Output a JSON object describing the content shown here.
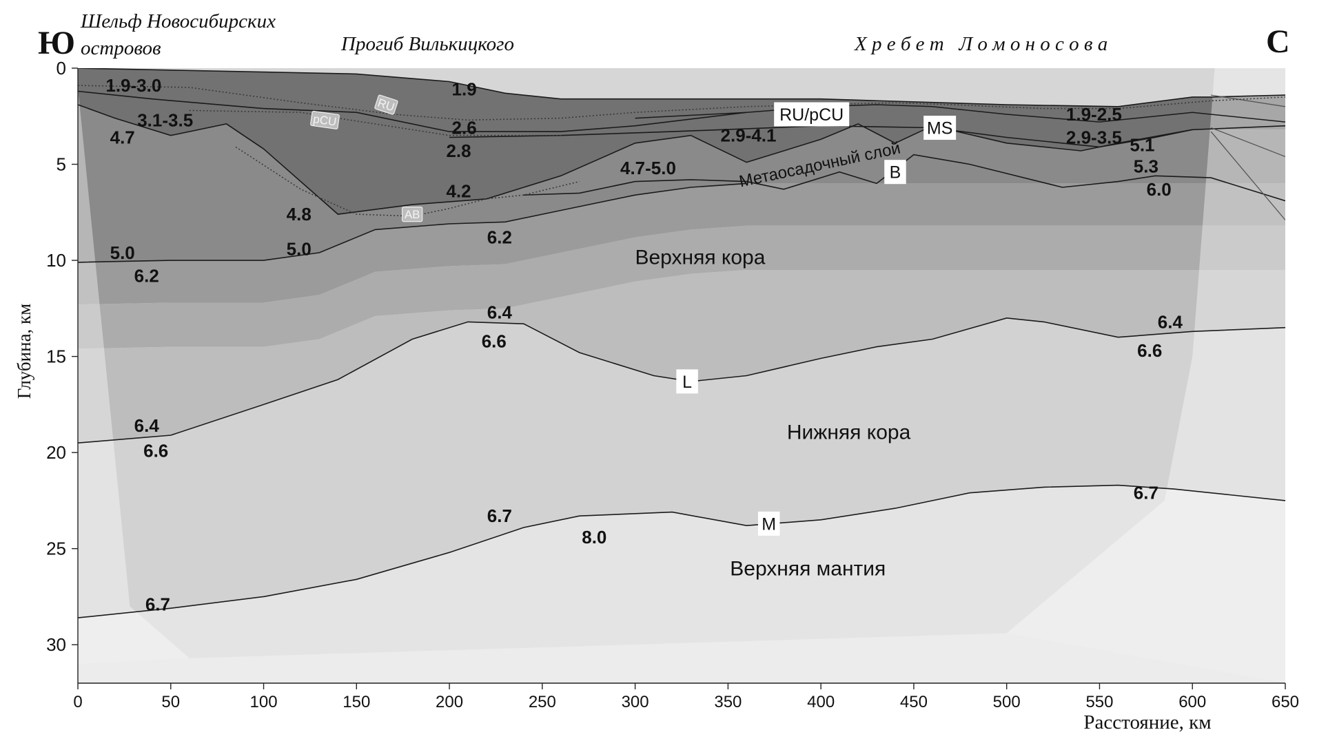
{
  "header": {
    "south_letter": "Ю",
    "north_letter": "С",
    "region_shelf_line1": "Шельф Новосибирских",
    "region_shelf_line2": "островов",
    "region_trough": "Прогиб Вилькицкого",
    "region_ridge": "Х р е б е т   Л о м о н о с о в а"
  },
  "axes": {
    "ylabel": "Глубина, км",
    "xlabel": "Расстояние, км",
    "x_ticks": [
      0,
      50,
      100,
      150,
      200,
      250,
      300,
      350,
      400,
      450,
      500,
      550,
      600,
      650
    ],
    "y_ticks": [
      0,
      5,
      10,
      15,
      20,
      25,
      30
    ],
    "x_range": [
      0,
      650
    ],
    "y_range": [
      0,
      32
    ]
  },
  "layers": [
    {
      "label": "Верхняя кора",
      "x": 335,
      "y": 10.2
    },
    {
      "label": "Нижняя кора",
      "x": 415,
      "y": 19.3
    },
    {
      "label": "Верхняя мантия",
      "x": 393,
      "y": 26.4
    },
    {
      "label": "Метаосадочный слой",
      "x": 400,
      "y": 5.3,
      "rotate": -12
    }
  ],
  "boxed_labels": [
    {
      "text": "RU/pCU",
      "x": 395,
      "y": 2.4,
      "big": true
    },
    {
      "text": "MS",
      "x": 464,
      "y": 3.1,
      "big": true
    },
    {
      "text": "B",
      "x": 440,
      "y": 5.4,
      "big": true
    },
    {
      "text": "L",
      "x": 328,
      "y": 16.3,
      "big": true
    },
    {
      "text": "M",
      "x": 372,
      "y": 23.7,
      "big": true
    },
    {
      "text": "RU",
      "x": 166,
      "y": 1.9,
      "big": false,
      "rotate": 18
    },
    {
      "text": "pCU",
      "x": 133,
      "y": 2.7,
      "big": false,
      "rotate": 8
    },
    {
      "text": "AB",
      "x": 180,
      "y": 7.6,
      "big": false
    }
  ],
  "velocity_labels": [
    {
      "text": "1.9-3.0",
      "x": 30,
      "y": 0.9
    },
    {
      "text": "1.9",
      "x": 208,
      "y": 1.1
    },
    {
      "text": "3.1-3.5",
      "x": 47,
      "y": 2.7
    },
    {
      "text": "4.7",
      "x": 24,
      "y": 3.6
    },
    {
      "text": "2.6",
      "x": 208,
      "y": 3.1
    },
    {
      "text": "2.8",
      "x": 205,
      "y": 4.3
    },
    {
      "text": "2.9-4.1",
      "x": 361,
      "y": 3.5
    },
    {
      "text": "4.7-5.0",
      "x": 307,
      "y": 5.2
    },
    {
      "text": "4.2",
      "x": 205,
      "y": 6.4
    },
    {
      "text": "4.8",
      "x": 119,
      "y": 7.6
    },
    {
      "text": "6.2",
      "x": 227,
      "y": 8.8
    },
    {
      "text": "5.0",
      "x": 24,
      "y": 9.6
    },
    {
      "text": "5.0",
      "x": 119,
      "y": 9.4
    },
    {
      "text": "6.2",
      "x": 37,
      "y": 10.8
    },
    {
      "text": "1.9-2.5",
      "x": 547,
      "y": 2.4
    },
    {
      "text": "2.9-3.5",
      "x": 547,
      "y": 3.6
    },
    {
      "text": "5.1",
      "x": 573,
      "y": 4.0
    },
    {
      "text": "5.3",
      "x": 575,
      "y": 5.1
    },
    {
      "text": "6.0",
      "x": 582,
      "y": 6.3
    },
    {
      "text": "6.4",
      "x": 227,
      "y": 12.7
    },
    {
      "text": "6.6",
      "x": 224,
      "y": 14.2
    },
    {
      "text": "6.4",
      "x": 588,
      "y": 13.2
    },
    {
      "text": "6.6",
      "x": 577,
      "y": 14.7
    },
    {
      "text": "6.4",
      "x": 37,
      "y": 18.6
    },
    {
      "text": "6.6",
      "x": 42,
      "y": 19.9
    },
    {
      "text": "6.7",
      "x": 227,
      "y": 23.3
    },
    {
      "text": "8.0",
      "x": 278,
      "y": 24.4
    },
    {
      "text": "6.7",
      "x": 575,
      "y": 22.1
    },
    {
      "text": "6.7",
      "x": 43,
      "y": 27.9
    }
  ],
  "boundaries": {
    "seafloor": [
      [
        0,
        0
      ],
      [
        50,
        0.1
      ],
      [
        100,
        0.2
      ],
      [
        150,
        0.3
      ],
      [
        200,
        0.7
      ],
      [
        230,
        1.3
      ],
      [
        260,
        1.6
      ],
      [
        300,
        1.6
      ],
      [
        400,
        1.6
      ],
      [
        500,
        1.9
      ],
      [
        560,
        2.0
      ],
      [
        600,
        1.5
      ],
      [
        610,
        1.5
      ],
      [
        650,
        1.4
      ]
    ],
    "ru_pcu_north": [
      [
        300,
        2.6
      ],
      [
        360,
        2.3
      ],
      [
        400,
        2.0
      ],
      [
        430,
        1.9
      ],
      [
        460,
        2.0
      ],
      [
        500,
        2.4
      ],
      [
        550,
        2.8
      ],
      [
        600,
        2.3
      ],
      [
        650,
        2.8
      ]
    ],
    "pcu": [
      [
        0,
        1.2
      ],
      [
        40,
        1.6
      ],
      [
        100,
        2.1
      ],
      [
        150,
        2.3
      ],
      [
        200,
        3.3
      ],
      [
        260,
        3.3
      ],
      [
        300,
        3.0
      ],
      [
        360,
        2.3
      ]
    ],
    "ms": [
      [
        200,
        3.6
      ],
      [
        260,
        3.5
      ],
      [
        320,
        3.3
      ],
      [
        400,
        3.0
      ],
      [
        460,
        3.1
      ],
      [
        500,
        3.6
      ],
      [
        550,
        4.1
      ],
      [
        580,
        3.6
      ],
      [
        600,
        3.2
      ],
      [
        650,
        3.0
      ]
    ],
    "upper_sed": [
      [
        0,
        1.9
      ],
      [
        20,
        2.6
      ],
      [
        50,
        3.5
      ],
      [
        80,
        2.9
      ],
      [
        100,
        4.2
      ],
      [
        140,
        7.6
      ],
      [
        180,
        7.1
      ],
      [
        220,
        6.8
      ],
      [
        260,
        5.6
      ],
      [
        300,
        3.9
      ],
      [
        330,
        3.5
      ],
      [
        360,
        4.9
      ],
      [
        400,
        3.7
      ],
      [
        420,
        2.9
      ],
      [
        440,
        3.9
      ],
      [
        460,
        3.0
      ],
      [
        500,
        3.9
      ],
      [
        540,
        4.3
      ],
      [
        560,
        3.9
      ],
      [
        600,
        3.2
      ]
    ],
    "b": [
      [
        240,
        6.6
      ],
      [
        270,
        6.5
      ],
      [
        300,
        5.9
      ],
      [
        330,
        5.8
      ],
      [
        360,
        5.9
      ],
      [
        380,
        6.3
      ],
      [
        410,
        5.4
      ],
      [
        430,
        6.0
      ],
      [
        450,
        4.5
      ],
      [
        480,
        5.0
      ],
      [
        530,
        6.2
      ],
      [
        560,
        5.9
      ],
      [
        580,
        5.6
      ],
      [
        610,
        5.7
      ],
      [
        650,
        6.9
      ]
    ],
    "upper_crust_top": [
      [
        0,
        10.1
      ],
      [
        50,
        10.0
      ],
      [
        100,
        10.0
      ],
      [
        130,
        9.6
      ],
      [
        160,
        8.4
      ],
      [
        200,
        8.1
      ],
      [
        230,
        8.0
      ],
      [
        260,
        7.4
      ],
      [
        300,
        6.6
      ],
      [
        330,
        6.2
      ],
      [
        360,
        6.0
      ]
    ],
    "l": [
      [
        0,
        19.5
      ],
      [
        50,
        19.1
      ],
      [
        100,
        17.5
      ],
      [
        140,
        16.2
      ],
      [
        180,
        14.1
      ],
      [
        210,
        13.2
      ],
      [
        240,
        13.3
      ],
      [
        270,
        14.8
      ],
      [
        310,
        16.0
      ],
      [
        330,
        16.3
      ],
      [
        360,
        16.0
      ],
      [
        400,
        15.1
      ],
      [
        430,
        14.5
      ],
      [
        460,
        14.1
      ],
      [
        500,
        13.0
      ],
      [
        520,
        13.2
      ],
      [
        560,
        14.0
      ],
      [
        600,
        13.7
      ],
      [
        650,
        13.5
      ]
    ],
    "m": [
      [
        0,
        28.6
      ],
      [
        50,
        28.1
      ],
      [
        100,
        27.5
      ],
      [
        150,
        26.6
      ],
      [
        200,
        25.2
      ],
      [
        240,
        23.9
      ],
      [
        270,
        23.3
      ],
      [
        320,
        23.1
      ],
      [
        360,
        23.8
      ],
      [
        400,
        23.5
      ],
      [
        440,
        22.9
      ],
      [
        480,
        22.1
      ],
      [
        520,
        21.8
      ],
      [
        560,
        21.7
      ],
      [
        590,
        21.9
      ],
      [
        620,
        22.2
      ],
      [
        650,
        22.5
      ]
    ],
    "north_grey": [
      [
        610,
        1.4
      ],
      [
        650,
        2.0
      ]
    ],
    "north_thin": [
      [
        610,
        3.1
      ],
      [
        650,
        4.6
      ]
    ],
    "north_thin2": [
      [
        610,
        3.3
      ],
      [
        650,
        7.9
      ]
    ]
  },
  "dotted": {
    "ru": [
      [
        0,
        0.9
      ],
      [
        60,
        1.0
      ],
      [
        120,
        1.8
      ],
      [
        170,
        2.4
      ],
      [
        210,
        2.7
      ],
      [
        260,
        2.6
      ],
      [
        300,
        2.3
      ],
      [
        360,
        2.0
      ],
      [
        400,
        1.9
      ],
      [
        440,
        1.8
      ],
      [
        470,
        1.9
      ],
      [
        520,
        2.1
      ],
      [
        560,
        2.1
      ],
      [
        610,
        1.7
      ],
      [
        650,
        1.5
      ]
    ],
    "pcu": [
      [
        60,
        2.2
      ],
      [
        120,
        2.3
      ],
      [
        200,
        3.5
      ],
      [
        260,
        3.5
      ]
    ],
    "ab": [
      [
        85,
        4.1
      ],
      [
        120,
        6.3
      ],
      [
        150,
        7.6
      ],
      [
        180,
        7.7
      ],
      [
        200,
        7.3
      ],
      [
        220,
        6.8
      ],
      [
        240,
        6.6
      ],
      [
        270,
        5.9
      ]
    ]
  }
}
